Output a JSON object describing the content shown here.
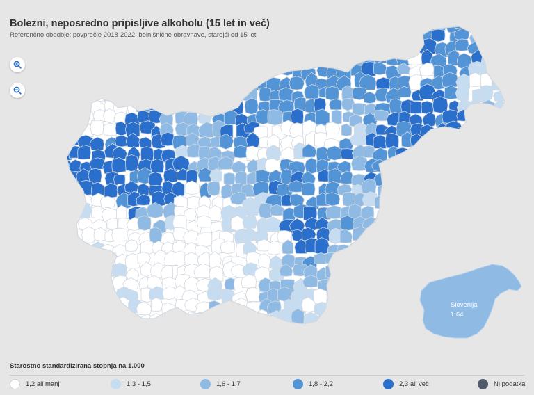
{
  "header": {
    "title": "Bolezni, neposredno pripisljive alkoholu (15 let in več)",
    "subtitle": "Referenčno obdobje: povprečje 2018-2022, bolnišnične obravnave, starejši od 15 let"
  },
  "controls": {
    "zoom_in_icon": "zoom-in-icon",
    "zoom_out_icon": "zoom-out-icon"
  },
  "inset": {
    "label": "Slovenija",
    "value": "1,64",
    "category": "1,6 - 1,7"
  },
  "legend": {
    "title": "Starostno standardizirana stopnja na 1.000",
    "items": [
      {
        "label": "1,2 ali manj",
        "color": "#ffffff"
      },
      {
        "label": "1,3 - 1,5",
        "color": "#c6dcf1"
      },
      {
        "label": "1,6 - 1,7",
        "color": "#8ebae4"
      },
      {
        "label": "1,8 - 2,2",
        "color": "#5294d6"
      },
      {
        "label": "2,3 ali več",
        "color": "#2a6fcb"
      },
      {
        "label": "Ni podatka",
        "color": "#525b6b"
      }
    ]
  },
  "colors": {
    "background": "#e6e6e6",
    "region_border": "#d2d8e0",
    "inset_fill": "#8ebae4"
  }
}
